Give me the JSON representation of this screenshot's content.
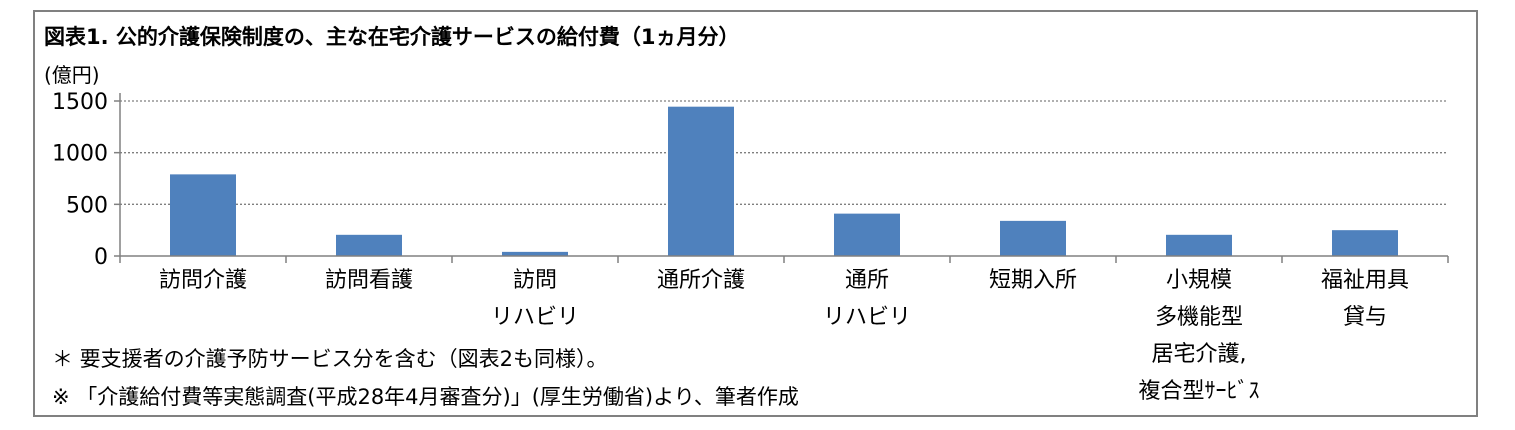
{
  "title": "図表1.  公的介護保険制度の、主な在宅介護サービスの給付費（1ヵ月分）",
  "unit": "(億円)",
  "chart_data": {
    "type": "bar",
    "categories": [
      "訪問介護",
      "訪問看護",
      "訪問\nリハビリ",
      "通所介護",
      "通所\nリハビリ",
      "短期入所",
      "小規模\n多機能型\n居宅介護,\n複合型ｻｰﾋﾞｽ",
      "福祉用具\n貸与"
    ],
    "values": [
      790,
      205,
      40,
      1445,
      410,
      340,
      205,
      250
    ],
    "ylim": [
      0,
      1500
    ],
    "yticks": [
      0,
      500,
      1000,
      1500
    ],
    "grid": true,
    "bar_color": "#4f81bd"
  },
  "notes": [
    "＊  要支援者の介護予防サービス分を含む（図表2も同様）。",
    "※  「介護給付費等実態調査(平成28年4月審査分)」(厚生労働省)より、筆者作成"
  ]
}
